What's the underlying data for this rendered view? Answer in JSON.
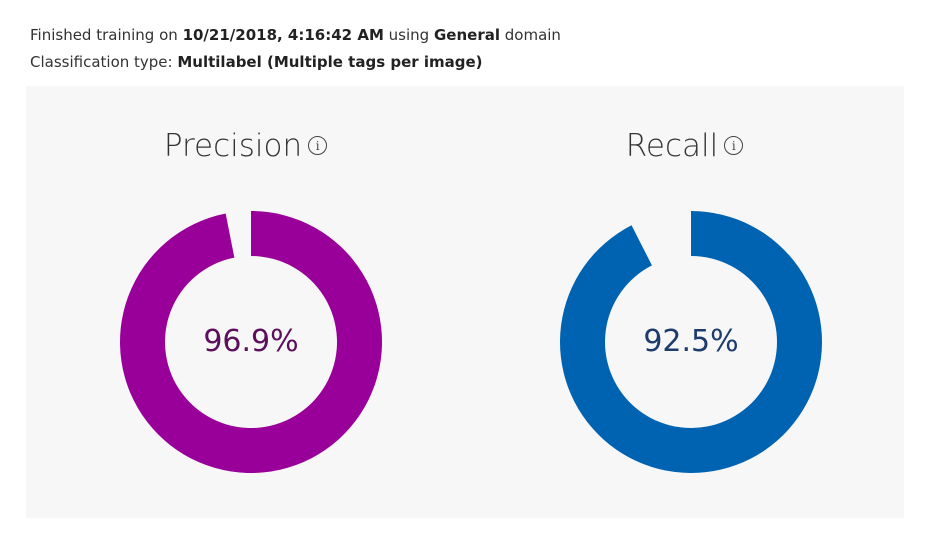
{
  "training_info": {
    "prefix": "Finished training on",
    "datetime": "10/21/2018, 4:16:42 AM",
    "using": "using",
    "domain": "General",
    "suffix": "domain"
  },
  "classification_info": {
    "label": "Classification type:",
    "value": "Multilabel (Multiple tags per image)"
  },
  "metrics": {
    "precision": {
      "title": "Precision",
      "value_text": "96.9%",
      "value": 96.9,
      "ring_color": "#990099",
      "text_color": "#5c0f5c"
    },
    "recall": {
      "title": "Recall",
      "value_text": "92.5%",
      "value": 92.5,
      "ring_color": "#0063b1",
      "text_color": "#1d3c6b"
    },
    "info_icon_glyph": "i"
  }
}
